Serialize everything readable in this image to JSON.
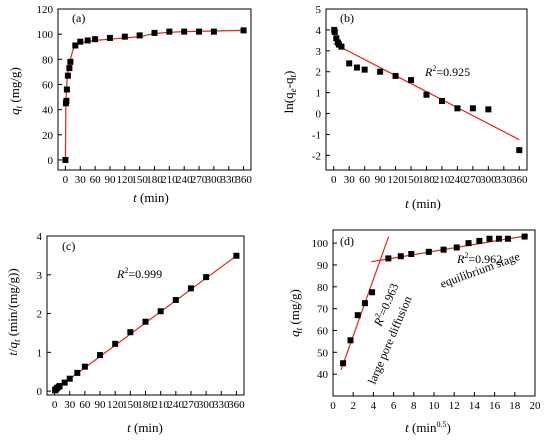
{
  "figure": {
    "colors": {
      "marker": "#000000",
      "fit_line": "#e8211b",
      "axis": "#000000"
    },
    "panel_labels": [
      "(a)",
      "(b)",
      "(c)",
      "(d)"
    ]
  },
  "chart_data": [
    {
      "id": "a",
      "type": "scatter",
      "panel_label": "(a)",
      "xlabel_var": "t",
      "xlabel_unit": " (min)",
      "ylabel_var": "q",
      "ylabel_sub": "t",
      "ylabel_unit": " (mg/g)",
      "xlim": [
        -15,
        375
      ],
      "ylim": [
        -8,
        120
      ],
      "xticks": [
        0,
        30,
        60,
        90,
        120,
        150,
        180,
        210,
        240,
        270,
        300,
        330,
        360
      ],
      "yticks": [
        0,
        20,
        40,
        60,
        80,
        100,
        120
      ],
      "series": [
        {
          "points": [
            [
              0,
              0
            ],
            [
              1,
              45
            ],
            [
              2,
              47
            ],
            [
              3,
              56
            ],
            [
              5,
              67
            ],
            [
              8,
              73
            ],
            [
              10,
              78
            ],
            [
              20,
              91
            ],
            [
              30,
              94
            ],
            [
              45,
              95
            ],
            [
              60,
              96
            ],
            [
              90,
              97
            ],
            [
              120,
              98
            ],
            [
              150,
              99
            ],
            [
              180,
              101
            ],
            [
              210,
              102
            ],
            [
              240,
              102
            ],
            [
              270,
              102
            ],
            [
              300,
              102
            ],
            [
              360,
              103
            ]
          ],
          "fit": [
            [
              0,
              0
            ],
            [
              1,
              45
            ],
            [
              2,
              55
            ],
            [
              3,
              62
            ],
            [
              5,
              70
            ],
            [
              8,
              76
            ],
            [
              10,
              80
            ],
            [
              15,
              87
            ],
            [
              20,
              91
            ],
            [
              30,
              93
            ],
            [
              45,
              94
            ],
            [
              60,
              95
            ],
            [
              90,
              96
            ],
            [
              120,
              97
            ],
            [
              150,
              98
            ],
            [
              180,
              100.5
            ],
            [
              210,
              101.5
            ],
            [
              240,
              102
            ],
            [
              300,
              102.5
            ],
            [
              360,
              103
            ]
          ]
        }
      ]
    },
    {
      "id": "b",
      "type": "scatter",
      "panel_label": "(b)",
      "xlabel_var": "t",
      "xlabel_unit": " (min)",
      "ylabel_text": "ln(q",
      "ylabel_sub1": "e",
      "ylabel_mid": "-q",
      "ylabel_sub2": "t",
      "ylabel_end": ")",
      "r2_prefix": "R",
      "r2_sup": "2",
      "r2_value": "=0.925",
      "xlim": [
        -15,
        375
      ],
      "ylim": [
        -2.7,
        5
      ],
      "xticks": [
        0,
        30,
        60,
        90,
        120,
        150,
        180,
        210,
        240,
        270,
        300,
        330,
        360
      ],
      "yticks": [
        -2,
        -1,
        0,
        1,
        2,
        3,
        4,
        5
      ],
      "series": [
        {
          "points": [
            [
              1,
              4.0
            ],
            [
              2,
              3.9
            ],
            [
              5,
              3.6
            ],
            [
              8,
              3.4
            ],
            [
              10,
              3.3
            ],
            [
              15,
              3.2
            ],
            [
              30,
              2.4
            ],
            [
              45,
              2.2
            ],
            [
              60,
              2.1
            ],
            [
              90,
              2.0
            ],
            [
              120,
              1.8
            ],
            [
              150,
              1.6
            ],
            [
              180,
              0.9
            ],
            [
              210,
              0.6
            ],
            [
              240,
              0.25
            ],
            [
              270,
              0.25
            ],
            [
              300,
              0.2
            ],
            [
              360,
              -1.75
            ]
          ],
          "fit": [
            [
              0,
              3.35
            ],
            [
              360,
              -1.25
            ]
          ]
        }
      ]
    },
    {
      "id": "c",
      "type": "scatter",
      "panel_label": "(c)",
      "xlabel_var": "t",
      "xlabel_unit": " (min)",
      "ylabel_var1": "t",
      "ylabel_mid": "/",
      "ylabel_var2": "q",
      "ylabel_sub": "t",
      "ylabel_unit": " (min/(mg/g))",
      "r2_prefix": "R",
      "r2_sup": "2",
      "r2_value": "=0.999",
      "xlim": [
        -15,
        375
      ],
      "ylim": [
        -0.1,
        4
      ],
      "xticks": [
        0,
        30,
        60,
        90,
        120,
        150,
        180,
        210,
        240,
        270,
        300,
        330,
        360
      ],
      "yticks": [
        0,
        1,
        2,
        3,
        4
      ],
      "series": [
        {
          "points": [
            [
              1,
              0.02
            ],
            [
              2,
              0.04
            ],
            [
              3,
              0.05
            ],
            [
              5,
              0.08
            ],
            [
              8,
              0.11
            ],
            [
              10,
              0.13
            ],
            [
              20,
              0.22
            ],
            [
              30,
              0.32
            ],
            [
              45,
              0.47
            ],
            [
              60,
              0.63
            ],
            [
              90,
              0.93
            ],
            [
              120,
              1.22
            ],
            [
              150,
              1.52
            ],
            [
              180,
              1.79
            ],
            [
              210,
              2.06
            ],
            [
              240,
              2.35
            ],
            [
              270,
              2.65
            ],
            [
              300,
              2.94
            ],
            [
              360,
              3.49
            ]
          ],
          "fit": [
            [
              0,
              0.03
            ],
            [
              360,
              3.49
            ]
          ]
        }
      ]
    },
    {
      "id": "d",
      "type": "scatter",
      "panel_label": "(d)",
      "xlabel_var": "t",
      "xlabel_unit_base": " (min",
      "xlabel_unit_sup": "0.5",
      "xlabel_unit_end": ")",
      "ylabel_var": "q",
      "ylabel_sub": "t",
      "ylabel_unit": " (mg/g)",
      "r2a_prefix": "R",
      "r2a_sup": "2",
      "r2a_value": "=0.963",
      "r2b_prefix": "R",
      "r2b_sup": "2",
      "r2b_value": "=0.962",
      "label_stage1": "large pore diffusion",
      "label_stage2": "equilibrium stage",
      "xlim": [
        0,
        20
      ],
      "ylim": [
        30,
        106
      ],
      "xticks": [
        0,
        2,
        4,
        6,
        8,
        10,
        12,
        14,
        16,
        18,
        20
      ],
      "yticks": [
        40,
        50,
        60,
        70,
        80,
        90,
        100
      ],
      "series": [
        {
          "points": [
            [
              1,
              45
            ],
            [
              1.73,
              55.5
            ],
            [
              2.45,
              67
            ],
            [
              3.16,
              72.5
            ],
            [
              3.87,
              77.5
            ],
            [
              5.48,
              93
            ],
            [
              6.71,
              94
            ],
            [
              7.75,
              95
            ],
            [
              9.49,
              96
            ],
            [
              10.95,
              97
            ],
            [
              12.25,
              98
            ],
            [
              13.42,
              100
            ],
            [
              14.49,
              101
            ],
            [
              15.49,
              102
            ],
            [
              16.43,
              102
            ],
            [
              17.32,
              102
            ],
            [
              18.97,
              103
            ]
          ],
          "fit1": [
            [
              0.8,
              42
            ],
            [
              5.5,
              103
            ]
          ],
          "fit2": [
            [
              3.8,
              91.5
            ],
            [
              19.3,
              103.5
            ]
          ]
        }
      ]
    }
  ]
}
